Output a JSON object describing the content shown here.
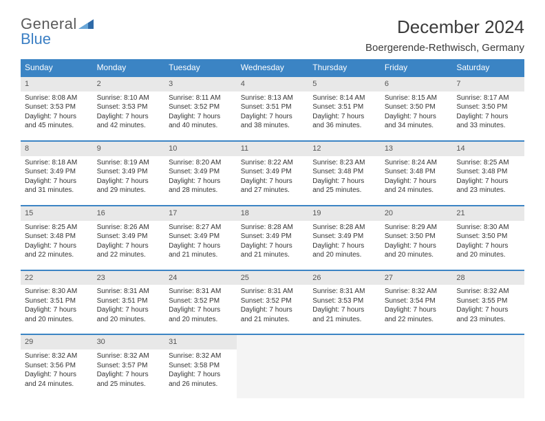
{
  "branding": {
    "name_part1": "General",
    "name_part2": "Blue",
    "text_color": "#5a5a5a",
    "accent_color": "#3b7fc4"
  },
  "title": "December 2024",
  "location": "Boergerende-Rethwisch, Germany",
  "header_bg": "#3b84c4",
  "header_text_color": "#ffffff",
  "daynum_bg": "#e8e8e8",
  "daynum_border": "#3b84c4",
  "empty_bg": "#f4f4f4",
  "text_color": "#333333",
  "weekdays": [
    "Sunday",
    "Monday",
    "Tuesday",
    "Wednesday",
    "Thursday",
    "Friday",
    "Saturday"
  ],
  "weeks": [
    [
      {
        "n": "1",
        "sunrise": "Sunrise: 8:08 AM",
        "sunset": "Sunset: 3:53 PM",
        "d1": "Daylight: 7 hours",
        "d2": "and 45 minutes."
      },
      {
        "n": "2",
        "sunrise": "Sunrise: 8:10 AM",
        "sunset": "Sunset: 3:53 PM",
        "d1": "Daylight: 7 hours",
        "d2": "and 42 minutes."
      },
      {
        "n": "3",
        "sunrise": "Sunrise: 8:11 AM",
        "sunset": "Sunset: 3:52 PM",
        "d1": "Daylight: 7 hours",
        "d2": "and 40 minutes."
      },
      {
        "n": "4",
        "sunrise": "Sunrise: 8:13 AM",
        "sunset": "Sunset: 3:51 PM",
        "d1": "Daylight: 7 hours",
        "d2": "and 38 minutes."
      },
      {
        "n": "5",
        "sunrise": "Sunrise: 8:14 AM",
        "sunset": "Sunset: 3:51 PM",
        "d1": "Daylight: 7 hours",
        "d2": "and 36 minutes."
      },
      {
        "n": "6",
        "sunrise": "Sunrise: 8:15 AM",
        "sunset": "Sunset: 3:50 PM",
        "d1": "Daylight: 7 hours",
        "d2": "and 34 minutes."
      },
      {
        "n": "7",
        "sunrise": "Sunrise: 8:17 AM",
        "sunset": "Sunset: 3:50 PM",
        "d1": "Daylight: 7 hours",
        "d2": "and 33 minutes."
      }
    ],
    [
      {
        "n": "8",
        "sunrise": "Sunrise: 8:18 AM",
        "sunset": "Sunset: 3:49 PM",
        "d1": "Daylight: 7 hours",
        "d2": "and 31 minutes."
      },
      {
        "n": "9",
        "sunrise": "Sunrise: 8:19 AM",
        "sunset": "Sunset: 3:49 PM",
        "d1": "Daylight: 7 hours",
        "d2": "and 29 minutes."
      },
      {
        "n": "10",
        "sunrise": "Sunrise: 8:20 AM",
        "sunset": "Sunset: 3:49 PM",
        "d1": "Daylight: 7 hours",
        "d2": "and 28 minutes."
      },
      {
        "n": "11",
        "sunrise": "Sunrise: 8:22 AM",
        "sunset": "Sunset: 3:49 PM",
        "d1": "Daylight: 7 hours",
        "d2": "and 27 minutes."
      },
      {
        "n": "12",
        "sunrise": "Sunrise: 8:23 AM",
        "sunset": "Sunset: 3:48 PM",
        "d1": "Daylight: 7 hours",
        "d2": "and 25 minutes."
      },
      {
        "n": "13",
        "sunrise": "Sunrise: 8:24 AM",
        "sunset": "Sunset: 3:48 PM",
        "d1": "Daylight: 7 hours",
        "d2": "and 24 minutes."
      },
      {
        "n": "14",
        "sunrise": "Sunrise: 8:25 AM",
        "sunset": "Sunset: 3:48 PM",
        "d1": "Daylight: 7 hours",
        "d2": "and 23 minutes."
      }
    ],
    [
      {
        "n": "15",
        "sunrise": "Sunrise: 8:25 AM",
        "sunset": "Sunset: 3:48 PM",
        "d1": "Daylight: 7 hours",
        "d2": "and 22 minutes."
      },
      {
        "n": "16",
        "sunrise": "Sunrise: 8:26 AM",
        "sunset": "Sunset: 3:49 PM",
        "d1": "Daylight: 7 hours",
        "d2": "and 22 minutes."
      },
      {
        "n": "17",
        "sunrise": "Sunrise: 8:27 AM",
        "sunset": "Sunset: 3:49 PM",
        "d1": "Daylight: 7 hours",
        "d2": "and 21 minutes."
      },
      {
        "n": "18",
        "sunrise": "Sunrise: 8:28 AM",
        "sunset": "Sunset: 3:49 PM",
        "d1": "Daylight: 7 hours",
        "d2": "and 21 minutes."
      },
      {
        "n": "19",
        "sunrise": "Sunrise: 8:28 AM",
        "sunset": "Sunset: 3:49 PM",
        "d1": "Daylight: 7 hours",
        "d2": "and 20 minutes."
      },
      {
        "n": "20",
        "sunrise": "Sunrise: 8:29 AM",
        "sunset": "Sunset: 3:50 PM",
        "d1": "Daylight: 7 hours",
        "d2": "and 20 minutes."
      },
      {
        "n": "21",
        "sunrise": "Sunrise: 8:30 AM",
        "sunset": "Sunset: 3:50 PM",
        "d1": "Daylight: 7 hours",
        "d2": "and 20 minutes."
      }
    ],
    [
      {
        "n": "22",
        "sunrise": "Sunrise: 8:30 AM",
        "sunset": "Sunset: 3:51 PM",
        "d1": "Daylight: 7 hours",
        "d2": "and 20 minutes."
      },
      {
        "n": "23",
        "sunrise": "Sunrise: 8:31 AM",
        "sunset": "Sunset: 3:51 PM",
        "d1": "Daylight: 7 hours",
        "d2": "and 20 minutes."
      },
      {
        "n": "24",
        "sunrise": "Sunrise: 8:31 AM",
        "sunset": "Sunset: 3:52 PM",
        "d1": "Daylight: 7 hours",
        "d2": "and 20 minutes."
      },
      {
        "n": "25",
        "sunrise": "Sunrise: 8:31 AM",
        "sunset": "Sunset: 3:52 PM",
        "d1": "Daylight: 7 hours",
        "d2": "and 21 minutes."
      },
      {
        "n": "26",
        "sunrise": "Sunrise: 8:31 AM",
        "sunset": "Sunset: 3:53 PM",
        "d1": "Daylight: 7 hours",
        "d2": "and 21 minutes."
      },
      {
        "n": "27",
        "sunrise": "Sunrise: 8:32 AM",
        "sunset": "Sunset: 3:54 PM",
        "d1": "Daylight: 7 hours",
        "d2": "and 22 minutes."
      },
      {
        "n": "28",
        "sunrise": "Sunrise: 8:32 AM",
        "sunset": "Sunset: 3:55 PM",
        "d1": "Daylight: 7 hours",
        "d2": "and 23 minutes."
      }
    ],
    [
      {
        "n": "29",
        "sunrise": "Sunrise: 8:32 AM",
        "sunset": "Sunset: 3:56 PM",
        "d1": "Daylight: 7 hours",
        "d2": "and 24 minutes."
      },
      {
        "n": "30",
        "sunrise": "Sunrise: 8:32 AM",
        "sunset": "Sunset: 3:57 PM",
        "d1": "Daylight: 7 hours",
        "d2": "and 25 minutes."
      },
      {
        "n": "31",
        "sunrise": "Sunrise: 8:32 AM",
        "sunset": "Sunset: 3:58 PM",
        "d1": "Daylight: 7 hours",
        "d2": "and 26 minutes."
      },
      {
        "empty": true
      },
      {
        "empty": true
      },
      {
        "empty": true
      },
      {
        "empty": true
      }
    ]
  ]
}
